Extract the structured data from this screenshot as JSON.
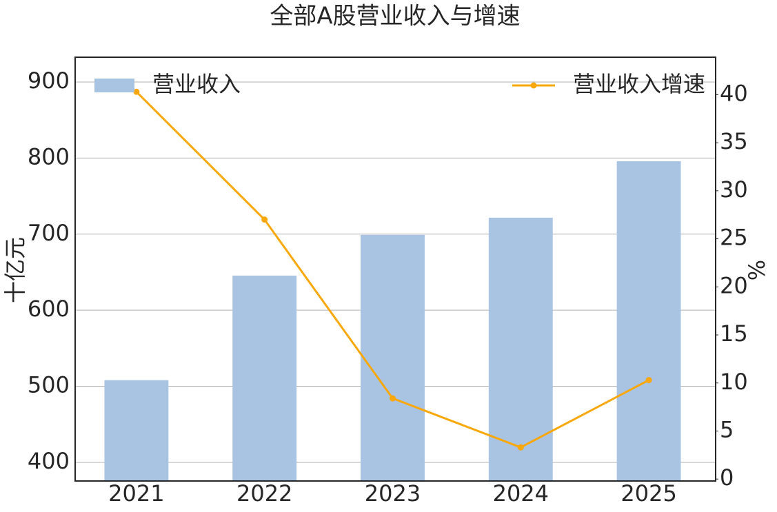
{
  "chart_data": {
    "type": "bar",
    "title": "全部A股营业收入与增速",
    "categories": [
      "2021",
      "2022",
      "2023",
      "2024",
      "2025"
    ],
    "series": [
      {
        "name": "营业收入",
        "type": "bar",
        "axis": "y",
        "color": "#a9c3e3",
        "legend": "upper left",
        "values": [
          508,
          645.5,
          699,
          721.6,
          795.8
        ]
      },
      {
        "name": "营业收入增速",
        "type": "line",
        "axis": "y2",
        "color": "#f9a80c",
        "legend": "upper right",
        "values": [
          40.3,
          27.0,
          8.4,
          3.3,
          10.3
        ]
      }
    ],
    "ylabel": "十亿元",
    "y2label": "%",
    "ylim": [
      375.5,
      932.6
    ],
    "yticks": [
      400,
      500,
      600,
      700,
      800,
      900
    ],
    "y2lim": [
      -0.2,
      43.9
    ],
    "y2ticks": [
      0,
      5,
      10,
      15,
      20,
      25,
      30,
      35,
      40
    ],
    "grid": true
  }
}
